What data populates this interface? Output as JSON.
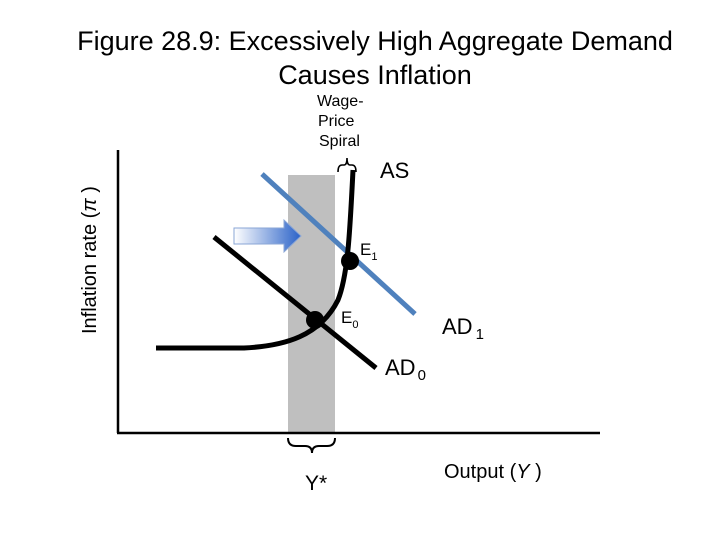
{
  "title": {
    "line1": "Figure 28.9: Excessively High Aggregate Demand",
    "line2": "Causes Inflation"
  },
  "axes": {
    "y_label": "Inflation rate (",
    "y_symbol": "π",
    "y_close": " )",
    "x_label": "Output (",
    "x_symbol": "Y",
    "x_close": " )"
  },
  "annotations": {
    "spiral_line1": "Wage-",
    "spiral_line2": "Price",
    "spiral_line3": "Spiral",
    "ystar": "Y*"
  },
  "curves": {
    "as": "AS",
    "ad1": "AD",
    "ad1_sub": "1",
    "ad0": "AD",
    "ad0_sub": "0"
  },
  "points": {
    "e1": "E",
    "e1_sub": "1",
    "e0": "E",
    "e0_sub": "0"
  },
  "colors": {
    "ad1_line": "#4f81bd",
    "potential_band": "#bfbfbf",
    "arrow_light": "#ffffff",
    "arrow_dark": "#2a62c8"
  }
}
